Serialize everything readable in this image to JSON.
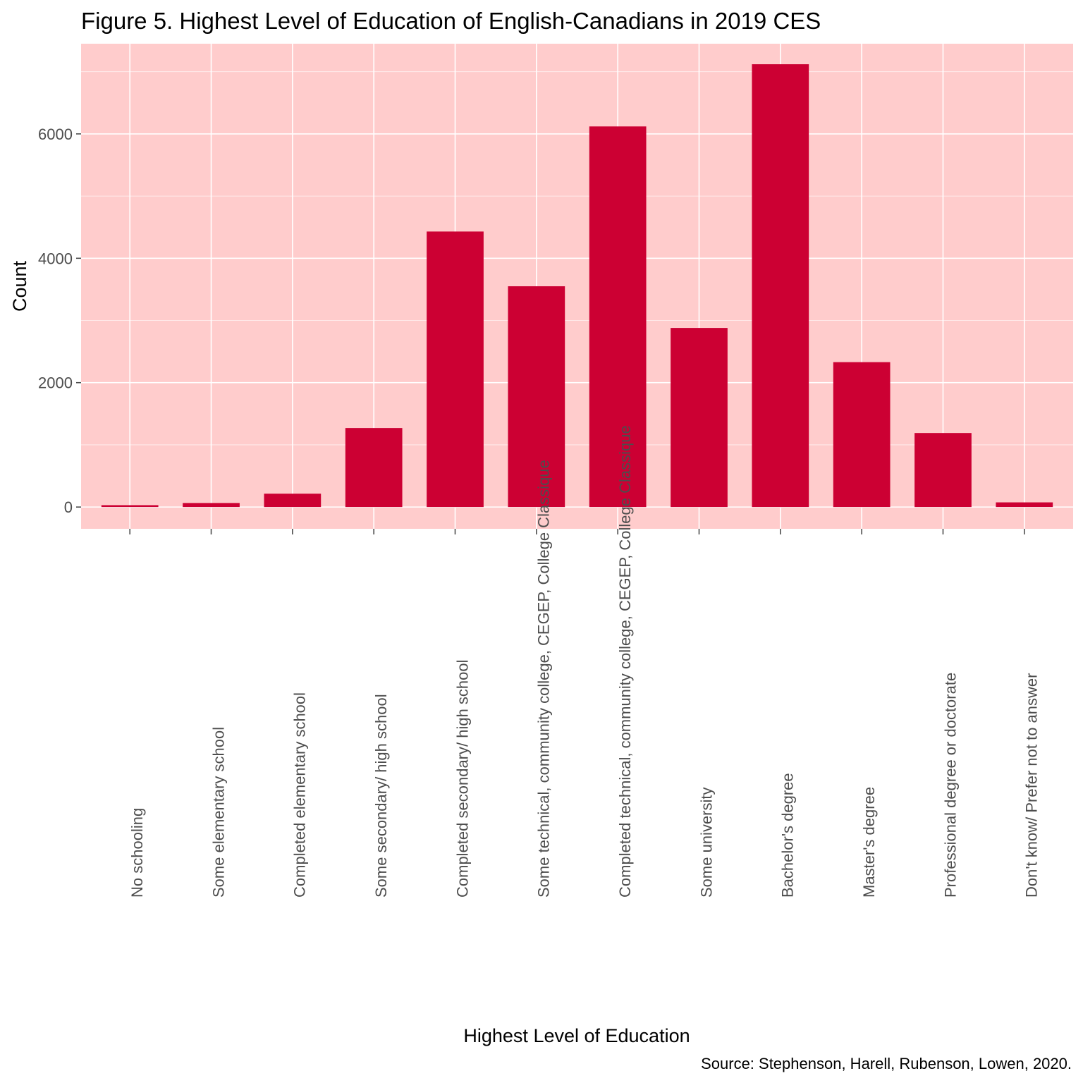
{
  "chart_data": {
    "type": "bar",
    "title": "Figure 5. Highest Level of Education of English-Canadians in 2019 CES",
    "xlabel": "Highest Level of Education",
    "ylabel": "Count",
    "caption": "Source: Stephenson, Harell, Rubenson, Lowen, 2020.",
    "categories": [
      "No schooling",
      "Some elementary school",
      "Completed elementary school",
      "Some secondary/ high school",
      "Completed secondary/ high school",
      "Some technical, community college, CEGEP, College Classique",
      "Completed technical, community college, CEGEP, College Classique",
      "Some university",
      "Bachelor's degree",
      "Master's degree",
      "Professional degree or doctorate",
      "Don't know/ Prefer not to answer"
    ],
    "values": [
      30,
      65,
      215,
      1270,
      4430,
      3550,
      6120,
      2880,
      7120,
      2330,
      1190,
      75
    ],
    "ylim": [
      -350,
      7450
    ],
    "yticks": [
      0,
      2000,
      4000,
      6000
    ],
    "grid": true,
    "colors": {
      "bar": "#cc0033",
      "panel": "#ffcccc",
      "grid": "#ffffff",
      "tick": "#4d4d4d"
    }
  }
}
